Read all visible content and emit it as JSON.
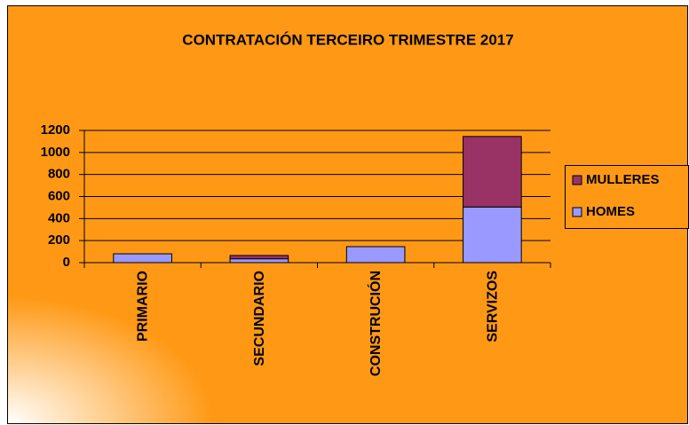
{
  "chart_data": {
    "type": "stacked_bar",
    "title": "CONTRATACIÓN TERCEIRO TRIMESTRE 2017",
    "categories": [
      "PRIMARIO",
      "SECUNDARIO",
      "CONSTRUCIÓN",
      "SERVIZOS"
    ],
    "series": [
      {
        "name": "HOMES",
        "color": "#9999ff",
        "values": [
          80,
          35,
          145,
          505
        ]
      },
      {
        "name": "MULLERES",
        "color": "#993366",
        "values": [
          0,
          30,
          0,
          640
        ]
      }
    ],
    "ylim": [
      0,
      1200
    ],
    "yticks": [
      0,
      200,
      400,
      600,
      800,
      1000,
      1200
    ],
    "grid": true,
    "legend": "right"
  }
}
